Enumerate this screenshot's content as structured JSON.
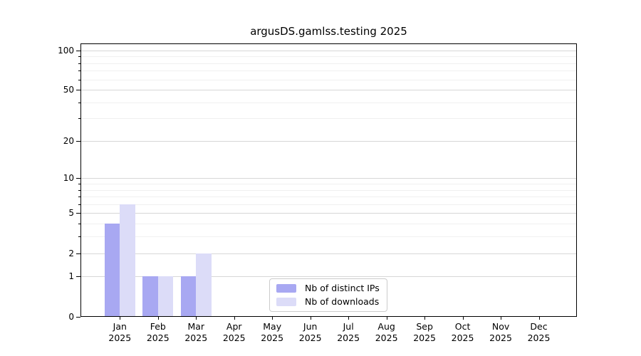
{
  "title": "argusDS.gamlss.testing 2025",
  "chart_data": {
    "type": "bar",
    "title": "argusDS.gamlss.testing 2025",
    "categories": [
      "Jan 2025",
      "Feb 2025",
      "Mar 2025",
      "Apr 2025",
      "May 2025",
      "Jun 2025",
      "Jul 2025",
      "Aug 2025",
      "Sep 2025",
      "Oct 2025",
      "Nov 2025",
      "Dec 2025"
    ],
    "series": [
      {
        "name": "Nb of distinct IPs",
        "color": "#a8a8f2",
        "values": [
          4,
          1,
          1,
          0,
          0,
          0,
          0,
          0,
          0,
          0,
          0,
          0
        ]
      },
      {
        "name": "Nb of downloads",
        "color": "#dcdcf8",
        "values": [
          6,
          1,
          2,
          0,
          0,
          0,
          0,
          0,
          0,
          0,
          0,
          0
        ]
      }
    ],
    "xlabel": "",
    "ylabel": "",
    "yscale": "log1p",
    "ylim": [
      0,
      113
    ],
    "y_ticks": [
      0,
      1,
      2,
      5,
      10,
      20,
      50,
      100
    ],
    "y_minor_ticks": [
      3,
      4,
      6,
      7,
      8,
      9,
      30,
      40,
      60,
      70,
      80,
      90
    ],
    "grid": true,
    "legend_position": "lower center",
    "grid_major_color": "#d7d7d7",
    "grid_minor_color": "#f0f0f0"
  }
}
